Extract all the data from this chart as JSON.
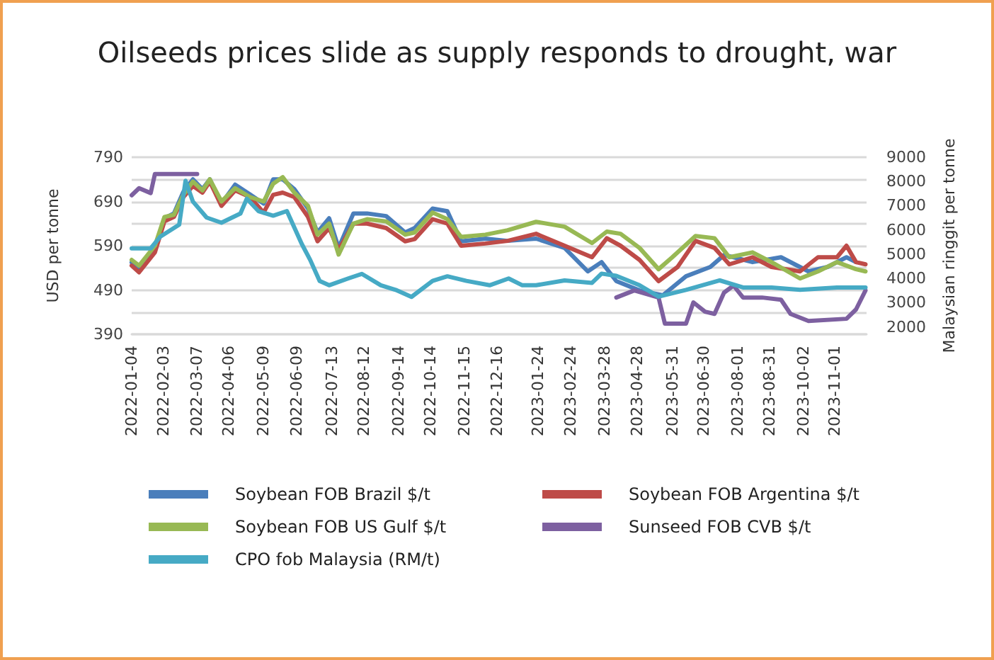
{
  "chart_data": {
    "type": "line",
    "title": "Oilseeds prices slide as supply responds to drought, war",
    "ylabel": "USD per tonne",
    "y2label": "Malaysian ringgit per tonne",
    "xlim": [
      "2022-01-04",
      "2023-12-01"
    ],
    "xticks": [
      "2022-01-04",
      "2022-02-03",
      "2022-03-07",
      "2022-04-06",
      "2022-05-09",
      "2022-06-09",
      "2022-07-13",
      "2022-08-12",
      "2022-09-14",
      "2022-10-14",
      "2022-11-15",
      "2022-12-16",
      "2023-01-24",
      "2023-02-24",
      "2023-03-28",
      "2023-04-28",
      "2023-05-31",
      "2023-06-30",
      "2023-08-01",
      "2023-08-31",
      "2023-10-02",
      "2023-11-01"
    ],
    "ylim": [
      390,
      790
    ],
    "yticks": [
      390,
      {
        "value": 440,
        "label": null
      },
      490,
      {
        "value": 540,
        "label": null
      },
      590,
      {
        "value": 640,
        "label": null
      },
      690,
      {
        "value": 740,
        "label": null
      },
      790
    ],
    "y2lim": [
      1700,
      9000
    ],
    "y2ticks": [
      2000,
      3000,
      4000,
      5000,
      6000,
      7000,
      8000,
      9000
    ],
    "grid": "y",
    "legend": "bottom",
    "marker": "none",
    "line_style": "solid",
    "series": [
      {
        "name": "Soybean FOB Brazil $/t",
        "color": "#4a7ebb",
        "x": [
          "2022-01-04",
          "2022-01-11",
          "2022-01-26",
          "2022-02-04",
          "2022-02-13",
          "2022-02-22",
          "2022-03-03",
          "2022-03-12",
          "2022-03-19",
          "2022-03-30",
          "2022-04-12",
          "2022-04-26",
          "2022-05-09",
          "2022-05-18",
          "2022-05-27",
          "2022-06-07",
          "2022-06-20",
          "2022-06-29",
          "2022-07-10",
          "2022-07-19",
          "2022-08-02",
          "2022-08-15",
          "2022-09-02",
          "2022-09-20",
          "2022-09-29",
          "2022-10-16",
          "2022-10-30",
          "2022-11-12",
          "2022-12-05",
          "2022-12-26",
          "2023-01-22",
          "2023-02-18",
          "2023-03-12",
          "2023-03-25",
          "2023-04-08",
          "2023-04-30",
          "2023-05-22",
          "2023-06-13",
          "2023-07-06",
          "2023-07-19",
          "2023-07-28",
          "2023-08-15",
          "2023-09-11",
          "2023-10-07",
          "2023-10-25",
          "2023-11-12",
          "2023-11-21"
        ],
        "values": [
          552,
          535,
          585,
          652,
          663,
          712,
          740,
          718,
          740,
          685,
          728,
          706,
          685,
          740,
          740,
          718,
          674,
          620,
          652,
          585,
          663,
          663,
          657,
          620,
          630,
          674,
          668,
          600,
          606,
          601,
          606,
          585,
          532,
          553,
          510,
          489,
          478,
          521,
          542,
          569,
          564,
          553,
          564,
          532,
          542,
          564,
          553
        ]
      },
      {
        "name": "Soybean FOB Argentina $/t",
        "color": "#be4b48",
        "x": [
          "2022-01-04",
          "2022-01-11",
          "2022-01-26",
          "2022-02-04",
          "2022-02-13",
          "2022-02-22",
          "2022-03-03",
          "2022-03-12",
          "2022-03-19",
          "2022-03-30",
          "2022-04-12",
          "2022-04-26",
          "2022-05-09",
          "2022-05-18",
          "2022-05-27",
          "2022-06-07",
          "2022-06-20",
          "2022-06-29",
          "2022-07-10",
          "2022-07-19",
          "2022-08-02",
          "2022-08-15",
          "2022-09-02",
          "2022-09-20",
          "2022-09-29",
          "2022-10-16",
          "2022-10-30",
          "2022-11-12",
          "2022-12-05",
          "2022-12-26",
          "2023-01-22",
          "2023-02-18",
          "2023-03-16",
          "2023-03-30",
          "2023-04-12",
          "2023-04-30",
          "2023-05-18",
          "2023-06-05",
          "2023-06-22",
          "2023-07-10",
          "2023-07-24",
          "2023-08-15",
          "2023-09-02",
          "2023-09-29",
          "2023-10-16",
          "2023-11-03",
          "2023-11-12",
          "2023-11-21",
          "2023-11-30"
        ],
        "values": [
          545,
          530,
          575,
          645,
          655,
          700,
          725,
          710,
          735,
          680,
          715,
          700,
          665,
          705,
          710,
          700,
          655,
          600,
          630,
          580,
          640,
          640,
          630,
          600,
          605,
          650,
          640,
          590,
          595,
          601,
          617,
          590,
          564,
          607,
          590,
          558,
          510,
          542,
          601,
          585,
          548,
          564,
          542,
          532,
          564,
          564,
          590,
          553,
          548
        ]
      },
      {
        "name": "Soybean FOB US Gulf $/t",
        "color": "#98b954",
        "x": [
          "2022-01-04",
          "2022-01-11",
          "2022-01-26",
          "2022-02-04",
          "2022-02-13",
          "2022-02-22",
          "2022-03-03",
          "2022-03-12",
          "2022-03-19",
          "2022-03-30",
          "2022-04-12",
          "2022-04-26",
          "2022-05-09",
          "2022-05-18",
          "2022-05-27",
          "2022-06-07",
          "2022-06-20",
          "2022-06-29",
          "2022-07-10",
          "2022-07-19",
          "2022-08-02",
          "2022-08-15",
          "2022-09-02",
          "2022-09-20",
          "2022-09-29",
          "2022-10-16",
          "2022-10-30",
          "2022-11-12",
          "2022-12-05",
          "2022-12-26",
          "2023-01-22",
          "2023-02-18",
          "2023-03-16",
          "2023-03-30",
          "2023-04-12",
          "2023-04-30",
          "2023-05-18",
          "2023-05-31",
          "2023-06-22",
          "2023-07-10",
          "2023-07-24",
          "2023-08-15",
          "2023-09-02",
          "2023-09-29",
          "2023-10-16",
          "2023-11-03",
          "2023-11-21",
          "2023-11-30"
        ],
        "values": [
          558,
          545,
          590,
          655,
          660,
          705,
          735,
          715,
          740,
          690,
          720,
          700,
          690,
          730,
          745,
          710,
          680,
          615,
          640,
          570,
          640,
          650,
          645,
          615,
          620,
          665,
          650,
          610,
          615,
          625,
          644,
          633,
          596,
          622,
          617,
          585,
          537,
          564,
          612,
          607,
          564,
          575,
          553,
          516,
          532,
          553,
          537,
          532
        ]
      },
      {
        "name": "Sunseed FOB CVB $/t",
        "color": "#7d60a0",
        "x": [
          "2022-01-04",
          "2022-01-11",
          "2022-01-22",
          "2022-01-26",
          "2022-03-07",
          "2022-03-08",
          "2023-04-08",
          "2023-04-25",
          "2023-05-18",
          "2023-05-24",
          "2023-06-13",
          "2023-06-20",
          "2023-07-01",
          "2023-07-10",
          "2023-07-19",
          "2023-07-28",
          "2023-08-06",
          "2023-08-24",
          "2023-09-11",
          "2023-09-20",
          "2023-10-07",
          "2023-11-12",
          "2023-11-21",
          "2023-11-30"
        ],
        "values": [
          704,
          720,
          709,
          752,
          752,
          null,
          473,
          489,
          473,
          414,
          414,
          462,
          441,
          436,
          484,
          500,
          473,
          473,
          468,
          436,
          420,
          425,
          446,
          489
        ]
      },
      {
        "name": "CPO fob Malaysia (RM/t)",
        "color": "#46aac5",
        "axis": "y2",
        "x": [
          "2022-01-04",
          "2022-01-22",
          "2022-01-31",
          "2022-02-18",
          "2022-02-24",
          "2022-03-03",
          "2022-03-16",
          "2022-03-30",
          "2022-04-17",
          "2022-04-23",
          "2022-05-04",
          "2022-05-18",
          "2022-05-31",
          "2022-06-14",
          "2022-06-22",
          "2022-07-01",
          "2022-07-10",
          "2022-07-28",
          "2022-08-10",
          "2022-08-28",
          "2022-09-11",
          "2022-09-26",
          "2022-10-16",
          "2022-10-30",
          "2022-11-17",
          "2022-12-09",
          "2022-12-27",
          "2023-01-09",
          "2023-01-22",
          "2023-02-18",
          "2023-03-16",
          "2023-03-25",
          "2023-04-08",
          "2023-04-30",
          "2023-05-18",
          "2023-06-13",
          "2023-07-15",
          "2023-08-06",
          "2023-09-02",
          "2023-09-29",
          "2023-11-03",
          "2023-11-30"
        ],
        "values": [
          5240,
          5240,
          5720,
          6220,
          8030,
          7170,
          6510,
          6300,
          6680,
          7290,
          6780,
          6590,
          6780,
          5430,
          4770,
          3900,
          3720,
          4000,
          4190,
          3720,
          3530,
          3240,
          3900,
          4090,
          3900,
          3720,
          4000,
          3720,
          3720,
          3920,
          3820,
          4200,
          4110,
          3720,
          3250,
          3530,
          3920,
          3630,
          3630,
          3530,
          3630,
          3630
        ]
      }
    ]
  }
}
